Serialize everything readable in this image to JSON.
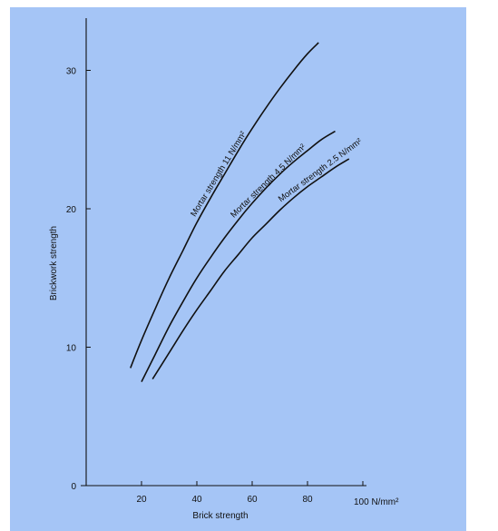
{
  "chart_data": {
    "type": "line",
    "title": "",
    "xlabel": "Brick strength",
    "ylabel": "Brickwork strength",
    "x_unit_label": "100 N/mm²",
    "xlim": [
      0,
      100
    ],
    "ylim": [
      0,
      34
    ],
    "x_ticks": [
      20,
      40,
      60,
      80
    ],
    "y_ticks": [
      0,
      10,
      20,
      30
    ],
    "y_tick_labels": [
      "0",
      "10",
      "20",
      "30"
    ],
    "grid": false,
    "legend": "none",
    "series": [
      {
        "name": "Mortar strength 11 N/mm²",
        "x": [
          16,
          20,
          25,
          30,
          35,
          40,
          45,
          50,
          55,
          60,
          65,
          70,
          75,
          80,
          84
        ],
        "y": [
          8.5,
          10.5,
          12.8,
          15.0,
          17.0,
          19.0,
          20.8,
          22.5,
          24.2,
          25.8,
          27.3,
          28.7,
          30.0,
          31.2,
          32.0
        ]
      },
      {
        "name": "Mortar strength 4.5 N/mm²",
        "x": [
          20,
          25,
          30,
          35,
          40,
          45,
          50,
          55,
          60,
          65,
          70,
          75,
          80,
          85,
          90
        ],
        "y": [
          7.5,
          9.5,
          11.5,
          13.3,
          15.0,
          16.5,
          17.9,
          19.2,
          20.4,
          21.5,
          22.5,
          23.4,
          24.2,
          25.0,
          25.6
        ]
      },
      {
        "name": "Mortar strength 2.5 N/mm²",
        "x": [
          24,
          30,
          35,
          40,
          45,
          50,
          55,
          60,
          65,
          70,
          75,
          80,
          85,
          90,
          95
        ],
        "y": [
          7.7,
          9.6,
          11.2,
          12.7,
          14.1,
          15.5,
          16.7,
          17.9,
          18.9,
          19.9,
          20.8,
          21.6,
          22.3,
          23.0,
          23.6
        ]
      }
    ]
  }
}
